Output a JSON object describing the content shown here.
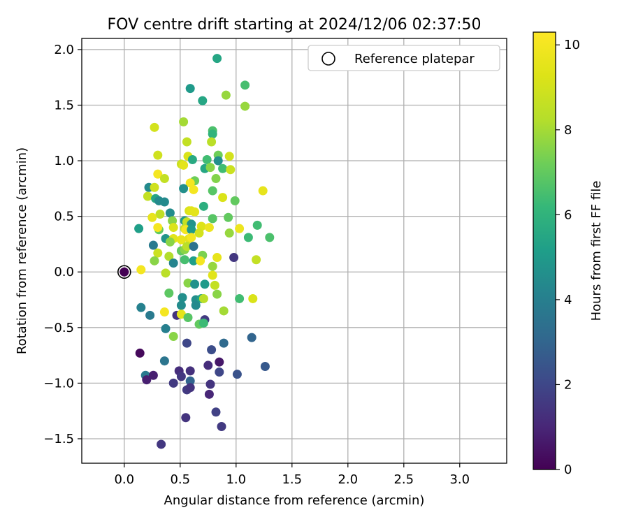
{
  "chart_data": {
    "type": "scatter",
    "title": "FOV centre drift starting at 2024/12/06 02:37:50",
    "xlabel": "Angular distance from reference (arcmin)",
    "ylabel": "Rotation from reference (arcmin)",
    "xlim": [
      -0.38,
      3.42
    ],
    "ylim": [
      -1.72,
      2.1
    ],
    "xticks": [
      0.0,
      0.5,
      1.0,
      1.5,
      2.0,
      2.5,
      3.0
    ],
    "xtick_labels": [
      "0.0",
      "0.5",
      "1.0",
      "1.5",
      "2.0",
      "2.5",
      "3.0"
    ],
    "yticks": [
      -1.5,
      -1.0,
      -0.5,
      0.0,
      0.5,
      1.0,
      1.5,
      2.0
    ],
    "ytick_labels": [
      "−1.5",
      "−1.0",
      "−0.5",
      "0.0",
      "0.5",
      "1.0",
      "1.5",
      "2.0"
    ],
    "grid": true,
    "legend": {
      "position": "top-right",
      "entries": [
        "Reference platepar"
      ]
    },
    "reference_point": {
      "x": 0.0,
      "y": 0.0
    },
    "colorbar": {
      "label": "Hours from first FF file",
      "colormap": "viridis",
      "range": [
        0,
        10.3
      ],
      "ticks": [
        0,
        2,
        4,
        6,
        8,
        10
      ],
      "tick_labels": [
        "0",
        "2",
        "4",
        "6",
        "8",
        "10"
      ]
    },
    "points": [
      [
        0.83,
        1.92,
        5.5
      ],
      [
        0.59,
        1.65,
        5.0
      ],
      [
        1.08,
        1.68,
        6.5
      ],
      [
        0.7,
        1.54,
        5.5
      ],
      [
        0.91,
        1.59,
        7.8
      ],
      [
        1.08,
        1.49,
        7.8
      ],
      [
        0.53,
        1.35,
        8.0
      ],
      [
        0.27,
        1.3,
        9.0
      ],
      [
        0.79,
        1.27,
        6.6
      ],
      [
        0.79,
        1.24,
        6.0
      ],
      [
        0.56,
        1.17,
        8.6
      ],
      [
        0.78,
        1.17,
        8.4
      ],
      [
        0.3,
        1.05,
        8.9
      ],
      [
        0.57,
        1.04,
        9.2
      ],
      [
        0.84,
        1.05,
        7.2
      ],
      [
        0.94,
        1.04,
        9.0
      ],
      [
        0.61,
        1.01,
        5.6
      ],
      [
        0.74,
        1.01,
        6.4
      ],
      [
        0.84,
        1.0,
        4.6
      ],
      [
        0.51,
        0.97,
        8.8
      ],
      [
        0.53,
        0.96,
        9.5
      ],
      [
        0.72,
        0.93,
        5.5
      ],
      [
        0.77,
        0.94,
        7.6
      ],
      [
        0.88,
        0.93,
        6.4
      ],
      [
        0.95,
        0.92,
        8.8
      ],
      [
        0.3,
        0.88,
        10.0
      ],
      [
        0.36,
        0.84,
        8.6
      ],
      [
        0.63,
        0.82,
        7.2
      ],
      [
        0.82,
        0.84,
        7.5
      ],
      [
        0.59,
        0.8,
        10.0
      ],
      [
        0.22,
        0.76,
        4.4
      ],
      [
        0.27,
        0.76,
        8.9
      ],
      [
        0.53,
        0.75,
        4.6
      ],
      [
        0.62,
        0.74,
        10.0
      ],
      [
        0.79,
        0.73,
        6.8
      ],
      [
        1.24,
        0.73,
        9.6
      ],
      [
        0.21,
        0.68,
        8.6
      ],
      [
        0.28,
        0.66,
        5.5
      ],
      [
        0.88,
        0.67,
        9.2
      ],
      [
        0.31,
        0.64,
        4.4
      ],
      [
        0.36,
        0.63,
        4.4
      ],
      [
        0.99,
        0.64,
        7.0
      ],
      [
        0.71,
        0.59,
        5.8
      ],
      [
        0.41,
        0.53,
        4.5
      ],
      [
        0.58,
        0.55,
        9.2
      ],
      [
        0.6,
        0.55,
        9.4
      ],
      [
        0.63,
        0.54,
        9.5
      ],
      [
        0.32,
        0.52,
        8.5
      ],
      [
        0.25,
        0.49,
        9.6
      ],
      [
        0.43,
        0.46,
        7.6
      ],
      [
        0.54,
        0.46,
        5.0
      ],
      [
        0.56,
        0.45,
        8.6
      ],
      [
        0.6,
        0.43,
        4.7
      ],
      [
        0.79,
        0.48,
        6.8
      ],
      [
        0.93,
        0.49,
        7.0
      ],
      [
        1.19,
        0.42,
        6.4
      ],
      [
        0.13,
        0.39,
        5.2
      ],
      [
        0.31,
        0.38,
        7.0
      ],
      [
        0.3,
        0.4,
        10.0
      ],
      [
        0.44,
        0.4,
        9.2
      ],
      [
        0.54,
        0.39,
        8.6
      ],
      [
        0.55,
        0.38,
        10.0
      ],
      [
        0.6,
        0.38,
        5.0
      ],
      [
        0.69,
        0.41,
        9.3
      ],
      [
        0.76,
        0.4,
        9.8
      ],
      [
        0.94,
        0.35,
        7.8
      ],
      [
        1.03,
        0.39,
        9.8
      ],
      [
        1.11,
        0.31,
        6.3
      ],
      [
        1.3,
        0.31,
        6.6
      ],
      [
        0.37,
        0.3,
        4.8
      ],
      [
        0.44,
        0.3,
        9.4
      ],
      [
        0.51,
        0.29,
        9.6
      ],
      [
        0.58,
        0.3,
        9.5
      ],
      [
        0.6,
        0.31,
        10.0
      ],
      [
        0.67,
        0.35,
        9.0
      ],
      [
        0.41,
        0.27,
        7.6
      ],
      [
        0.26,
        0.24,
        3.8
      ],
      [
        0.51,
        0.19,
        7.0
      ],
      [
        0.54,
        0.2,
        7.6
      ],
      [
        0.56,
        0.23,
        8.4
      ],
      [
        0.62,
        0.23,
        3.5
      ],
      [
        0.3,
        0.17,
        8.8
      ],
      [
        0.4,
        0.14,
        8.2
      ],
      [
        0.7,
        0.15,
        7.4
      ],
      [
        0.83,
        0.13,
        9.6
      ],
      [
        0.44,
        0.08,
        4.2
      ],
      [
        0.54,
        0.11,
        6.5
      ],
      [
        0.62,
        0.1,
        5.2
      ],
      [
        0.27,
        0.1,
        7.6
      ],
      [
        0.68,
        0.1,
        10.0
      ],
      [
        0.79,
        0.05,
        7.8
      ],
      [
        0.98,
        0.13,
        1.5
      ],
      [
        1.18,
        0.11,
        8.6
      ],
      [
        0.15,
        0.02,
        10.0
      ],
      [
        0.37,
        -0.01,
        8.4
      ],
      [
        0.79,
        -0.03,
        9.4
      ],
      [
        0.57,
        -0.1,
        7.6
      ],
      [
        0.63,
        -0.11,
        4.7
      ],
      [
        0.72,
        -0.11,
        5.0
      ],
      [
        0.81,
        -0.12,
        8.6
      ],
      [
        0.4,
        -0.19,
        6.9
      ],
      [
        0.83,
        -0.2,
        7.6
      ],
      [
        0.52,
        -0.23,
        4.6
      ],
      [
        0.64,
        -0.25,
        4.6
      ],
      [
        0.69,
        -0.24,
        5.3
      ],
      [
        0.71,
        -0.24,
        8.4
      ],
      [
        1.03,
        -0.24,
        6.4
      ],
      [
        1.15,
        -0.24,
        9.2
      ],
      [
        0.51,
        -0.3,
        4.5
      ],
      [
        0.64,
        -0.3,
        4.4
      ],
      [
        0.15,
        -0.32,
        4.1
      ],
      [
        0.36,
        -0.36,
        10.0
      ],
      [
        0.89,
        -0.35,
        8.0
      ],
      [
        0.23,
        -0.39,
        3.8
      ],
      [
        0.47,
        -0.39,
        1.4
      ],
      [
        0.51,
        -0.38,
        9.5
      ],
      [
        0.57,
        -0.41,
        6.8
      ],
      [
        0.72,
        -0.43,
        1.6
      ],
      [
        0.67,
        -0.47,
        7.0
      ],
      [
        0.71,
        -0.46,
        6.3
      ],
      [
        0.37,
        -0.51,
        4.0
      ],
      [
        0.44,
        -0.58,
        7.6
      ],
      [
        0.56,
        -0.64,
        2.0
      ],
      [
        1.14,
        -0.59,
        3.0
      ],
      [
        0.78,
        -0.7,
        2.2
      ],
      [
        0.89,
        -0.64,
        3.2
      ],
      [
        0.14,
        -0.73,
        0.2
      ],
      [
        0.36,
        -0.8,
        3.6
      ],
      [
        0.75,
        -0.84,
        1.2
      ],
      [
        0.85,
        -0.81,
        0.6
      ],
      [
        1.26,
        -0.85,
        2.6
      ],
      [
        0.49,
        -0.89,
        1.2
      ],
      [
        0.59,
        -0.89,
        1.3
      ],
      [
        0.19,
        -0.93,
        3.8
      ],
      [
        0.26,
        -0.93,
        0.8
      ],
      [
        0.51,
        -0.94,
        1.5
      ],
      [
        0.85,
        -0.9,
        2.0
      ],
      [
        1.01,
        -0.92,
        2.4
      ],
      [
        0.2,
        -0.97,
        0.8
      ],
      [
        0.44,
        -1.0,
        1.6
      ],
      [
        0.59,
        -0.98,
        3.0
      ],
      [
        0.77,
        -1.01,
        1.4
      ],
      [
        0.56,
        -1.06,
        1.6
      ],
      [
        0.59,
        -1.04,
        1.4
      ],
      [
        0.76,
        -1.1,
        1.0
      ],
      [
        0.82,
        -1.26,
        1.8
      ],
      [
        0.55,
        -1.31,
        1.4
      ],
      [
        0.87,
        -1.39,
        1.6
      ],
      [
        0.33,
        -1.55,
        1.5
      ]
    ]
  }
}
